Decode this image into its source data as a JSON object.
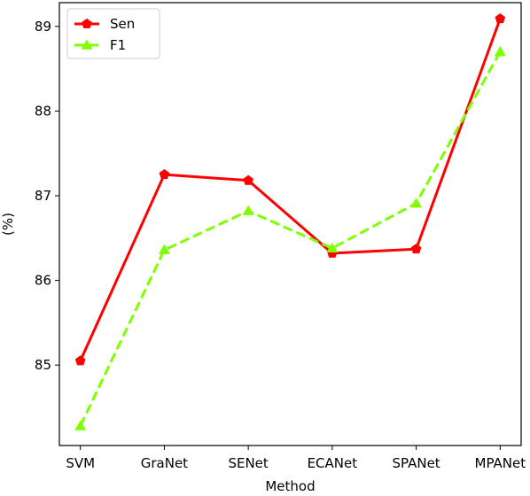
{
  "chart_data": {
    "type": "line",
    "categories": [
      "SVM",
      "GraNet",
      "SENet",
      "ECANet",
      "SPANet",
      "MPANet"
    ],
    "series": [
      {
        "name": "Sen",
        "values": [
          85.05,
          87.25,
          87.18,
          86.32,
          86.37,
          89.09
        ],
        "color": "#ff0000",
        "marker": "pentagon",
        "line_style": "solid"
      },
      {
        "name": "F1",
        "values": [
          84.28,
          86.36,
          86.82,
          86.38,
          86.91,
          88.7
        ],
        "color": "#7fff00",
        "marker": "triangle",
        "line_style": "dashed"
      }
    ],
    "xlabel": "Method",
    "ylabel": "(%)",
    "ylim": [
      84.05,
      89.28
    ],
    "yticks": [
      "85",
      "86",
      "87",
      "88",
      "89"
    ],
    "grid": false,
    "legend_position": "top-left"
  }
}
